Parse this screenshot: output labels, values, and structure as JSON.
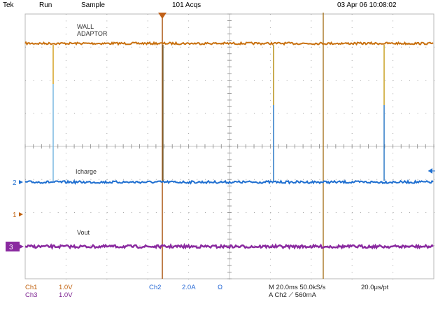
{
  "header": {
    "brand": "Tek",
    "run_state": "Run",
    "mode": "Sample",
    "acquisitions": "101 Acqs",
    "datetime": "03 Apr 06 10:08:02"
  },
  "traces": {
    "wall": {
      "label_line1": "WALL",
      "label_line2": "ADAPTOR",
      "color": "#c8700e"
    },
    "icharge": {
      "label": "Icharge",
      "marker": "2",
      "color": "#1f6fd0"
    },
    "vout": {
      "label": "Vout",
      "marker": "3",
      "color": "#8a2aa0"
    },
    "ch1_marker": "1"
  },
  "readout": {
    "ch1_name": "Ch1",
    "ch1_scale": "1.0V",
    "ch3_name": "Ch3",
    "ch3_scale": "1.0V",
    "ch2_name": "Ch2",
    "ch2_scale": "2.0A",
    "ch2_unit": "Ω",
    "timebase": "M 20.0ms 50.0kS/s",
    "trigger": "A  Ch2  ⟋  560mA",
    "resolution": "20.0μs/pt"
  }
}
